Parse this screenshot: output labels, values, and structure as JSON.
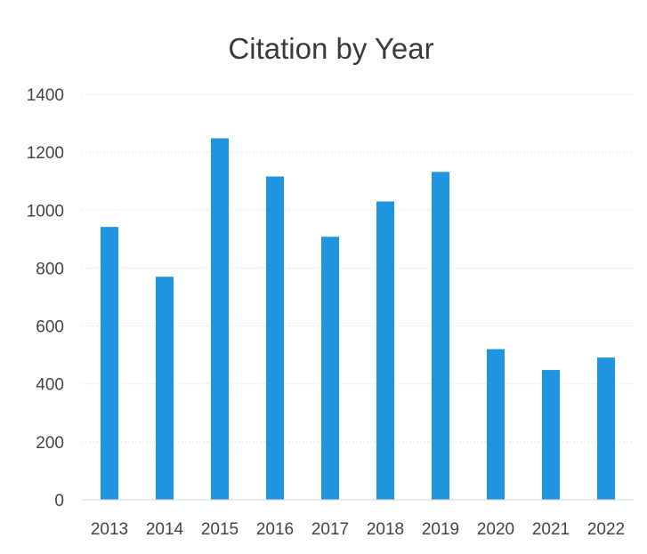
{
  "chart_data": {
    "type": "bar",
    "title": "Citation by Year",
    "xlabel": "",
    "ylabel": "",
    "categories": [
      "2013",
      "2014",
      "2015",
      "2016",
      "2017",
      "2018",
      "2019",
      "2020",
      "2021",
      "2022"
    ],
    "values": [
      942,
      770,
      1248,
      1116,
      908,
      1030,
      1132,
      520,
      448,
      491
    ],
    "ylim": [
      0,
      1400
    ],
    "yticks": [
      "0",
      "200",
      "400",
      "600",
      "800",
      "1000",
      "1200",
      "1400"
    ],
    "grid": true,
    "legend": "none",
    "bar_color": "#1f95e0"
  }
}
